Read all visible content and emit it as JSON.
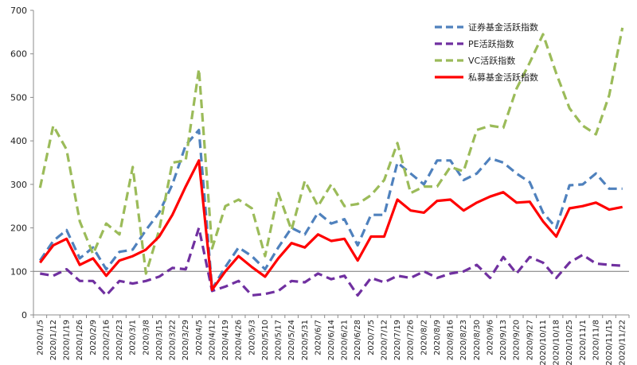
{
  "chart_data": {
    "type": "line",
    "title": "",
    "xlabel": "",
    "ylabel": "",
    "ylim": [
      0,
      700
    ],
    "yticks": [
      0,
      100,
      200,
      300,
      400,
      500,
      600,
      700
    ],
    "reference_line": 100,
    "grid": false,
    "legend_position": "top-right",
    "x_labels": [
      "2020/1/5",
      "2020/1/12",
      "2020/1/19",
      "2020/1/26",
      "2020/2/9",
      "2020/2/16",
      "2020/2/23",
      "2020/3/1",
      "2020/3/8",
      "2020/3/15",
      "2020/3/22",
      "2020/3/29",
      "2020/4/5",
      "2020/4/12",
      "2020/4/19",
      "2020/4/26",
      "2020/5/3",
      "2020/5/10",
      "2020/5/17",
      "2020/5/24",
      "2020/5/31",
      "2020/6/7",
      "2020/6/14",
      "2020/6/21",
      "2020/6/28",
      "2020/7/5",
      "2020/7/12",
      "2020/7/19",
      "2020/7/26",
      "2020/8/2",
      "2020/8/9",
      "2020/8/16",
      "2020/8/23",
      "2020/8/30",
      "2020/9/6",
      "2020/9/13",
      "2020/9/20",
      "2020/9/27",
      "2020/10/11",
      "2020/10/18",
      "2020/10/25",
      "2020/11/1",
      "2020/11/8",
      "2020/11/15",
      "2020/11/22"
    ],
    "series": [
      {
        "name": "证券基金活跃指数",
        "color": "#4F81BD",
        "dash": true,
        "values": [
          125,
          170,
          195,
          130,
          155,
          105,
          145,
          150,
          195,
          235,
          300,
          390,
          425,
          60,
          110,
          155,
          135,
          105,
          155,
          200,
          185,
          235,
          210,
          220,
          160,
          230,
          230,
          350,
          325,
          300,
          355,
          355,
          310,
          325,
          360,
          350,
          325,
          305,
          235,
          200,
          298,
          300,
          325,
          290,
          290
        ]
      },
      {
        "name": "PE活跃指数",
        "color": "#7030A0",
        "dash": true,
        "values": [
          95,
          90,
          105,
          78,
          78,
          45,
          78,
          72,
          78,
          88,
          108,
          105,
          200,
          55,
          65,
          78,
          45,
          48,
          55,
          78,
          75,
          95,
          82,
          90,
          45,
          85,
          75,
          90,
          85,
          100,
          85,
          95,
          100,
          115,
          85,
          133,
          95,
          133,
          120,
          85,
          120,
          138,
          118,
          115,
          113
        ]
      },
      {
        "name": "VC活跃指数",
        "color": "#9BBB59",
        "dash": true,
        "values": [
          292,
          435,
          380,
          215,
          140,
          210,
          185,
          340,
          95,
          195,
          350,
          355,
          565,
          153,
          250,
          265,
          245,
          135,
          280,
          195,
          308,
          250,
          300,
          250,
          255,
          275,
          310,
          395,
          280,
          295,
          295,
          340,
          330,
          425,
          435,
          430,
          520,
          580,
          645,
          555,
          475,
          435,
          415,
          505,
          660
        ]
      },
      {
        "name": "私募基金活跃指数",
        "color": "#FF0000",
        "dash": false,
        "values": [
          120,
          160,
          175,
          115,
          130,
          90,
          125,
          135,
          150,
          180,
          230,
          295,
          355,
          58,
          100,
          135,
          110,
          88,
          130,
          165,
          155,
          185,
          170,
          175,
          125,
          180,
          180,
          265,
          240,
          235,
          262,
          265,
          240,
          258,
          272,
          282,
          258,
          260,
          215,
          180,
          245,
          250,
          258,
          242,
          248
        ]
      }
    ]
  }
}
